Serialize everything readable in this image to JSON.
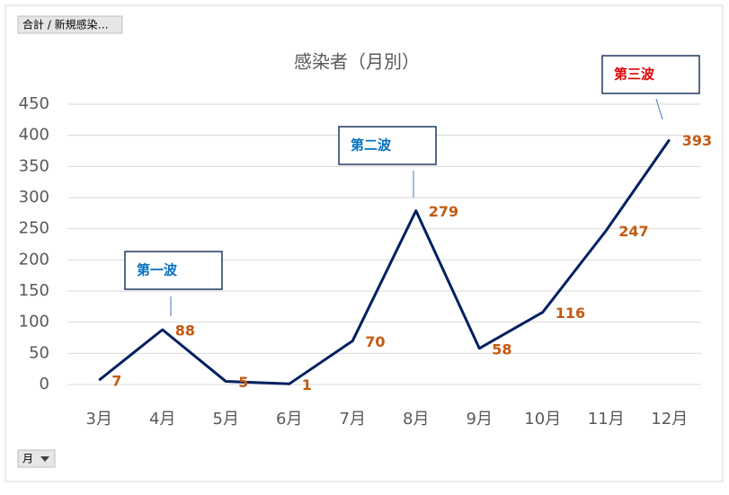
{
  "chart_data": {
    "type": "line",
    "title": "感染者（月別）",
    "categories": [
      "3月",
      "4月",
      "5月",
      "6月",
      "7月",
      "8月",
      "9月",
      "10月",
      "11月",
      "12月"
    ],
    "series": [
      {
        "name": "合計 / 新規感染者数",
        "color": "#002060",
        "values": [
          7,
          88,
          5,
          1,
          70,
          279,
          58,
          116,
          247,
          393
        ]
      }
    ],
    "ylim": [
      0,
      450
    ],
    "yticks": [
      0,
      50,
      100,
      150,
      200,
      250,
      300,
      350,
      400,
      450
    ],
    "grid": true,
    "annotations": [
      "第一波",
      "第二波",
      "第三波"
    ]
  },
  "field_buttons": {
    "value_field": "合計 / 新規感染…",
    "axis_field": "月"
  }
}
